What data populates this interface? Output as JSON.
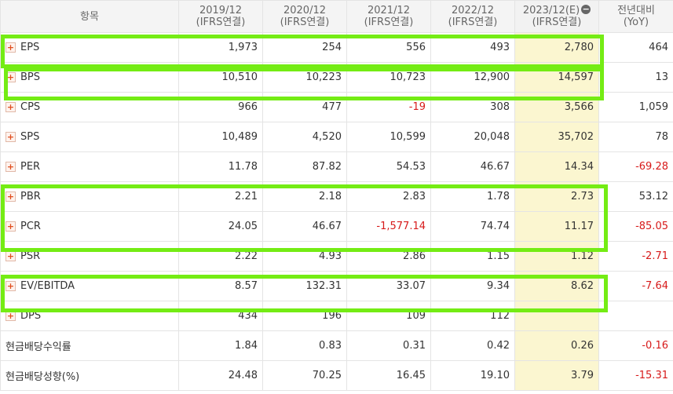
{
  "header": {
    "item": "항목",
    "cols": [
      {
        "period": "2019/12",
        "basis": "(IFRS연결)"
      },
      {
        "period": "2020/12",
        "basis": "(IFRS연결)"
      },
      {
        "period": "2021/12",
        "basis": "(IFRS연결)"
      },
      {
        "period": "2022/12",
        "basis": "(IFRS연결)"
      },
      {
        "period": "2023/12(E)",
        "basis": "(IFRS연결)"
      }
    ],
    "yoy": {
      "line1": "전년대비",
      "line2": "(YoY)"
    },
    "collapse_icon": "minus-icon"
  },
  "rows": [
    {
      "label": "EPS",
      "v": [
        "1,973",
        "254",
        "556",
        "493",
        "2,780",
        "464"
      ]
    },
    {
      "label": "BPS",
      "v": [
        "10,510",
        "10,223",
        "10,723",
        "12,900",
        "14,597",
        "13"
      ]
    },
    {
      "label": "CPS",
      "v": [
        "966",
        "477",
        "-19",
        "308",
        "3,566",
        "1,059"
      ]
    },
    {
      "label": "SPS",
      "v": [
        "10,489",
        "4,520",
        "10,599",
        "20,048",
        "35,702",
        "78"
      ]
    },
    {
      "label": "PER",
      "v": [
        "11.78",
        "87.82",
        "54.53",
        "46.67",
        "14.34",
        "-69.28"
      ]
    },
    {
      "label": "PBR",
      "v": [
        "2.21",
        "2.18",
        "2.83",
        "1.78",
        "2.73",
        "53.12"
      ]
    },
    {
      "label": "PCR",
      "v": [
        "24.05",
        "46.67",
        "-1,577.14",
        "74.74",
        "11.17",
        "-85.05"
      ]
    },
    {
      "label": "PSR",
      "v": [
        "2.22",
        "4.93",
        "2.86",
        "1.15",
        "1.12",
        "-2.71"
      ]
    },
    {
      "label": "EV/EBITDA",
      "v": [
        "8.57",
        "132.31",
        "33.07",
        "9.34",
        "8.62",
        "-7.64"
      ]
    },
    {
      "label": "DPS",
      "v": [
        "434",
        "196",
        "109",
        "112",
        "",
        ""
      ]
    },
    {
      "label": "현금배당수익률",
      "v": [
        "1.84",
        "0.83",
        "0.31",
        "0.42",
        "0.26",
        "-0.16"
      ]
    },
    {
      "label": "현금배당성향(%)",
      "v": [
        "24.48",
        "70.25",
        "16.45",
        "19.10",
        "3.79",
        "-15.31"
      ]
    }
  ],
  "colors": {
    "highlight": "#74ec14",
    "negative": "#d71a1a",
    "estimate_bg": "#fbf6d0"
  }
}
